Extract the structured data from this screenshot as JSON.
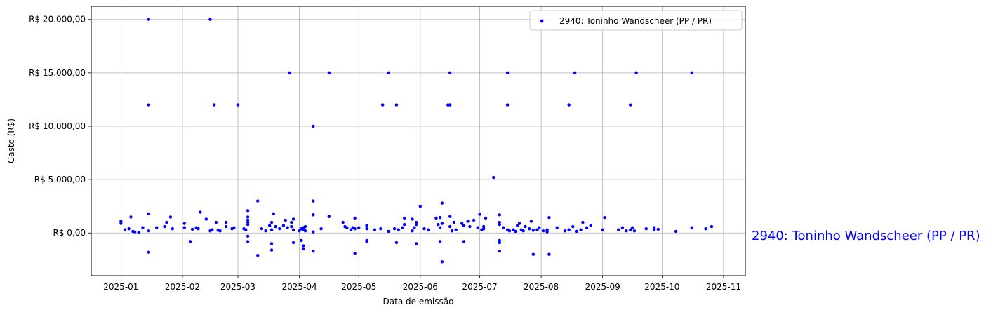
{
  "chart_data": {
    "type": "scatter",
    "title": "",
    "xlabel": "Data de emissão",
    "ylabel": "Gasto (R$)",
    "xlim": [
      "2024-12-17",
      "2025-11-12"
    ],
    "ylim": [
      -3990,
      21230
    ],
    "xticks": [
      "2025-01-01",
      "2025-02-01",
      "2025-03-01",
      "2025-04-01",
      "2025-05-01",
      "2025-06-01",
      "2025-07-01",
      "2025-08-01",
      "2025-09-01",
      "2025-10-01",
      "2025-11-01"
    ],
    "xtick_labels": [
      "2025-01",
      "2025-02",
      "2025-03",
      "2025-04",
      "2025-05",
      "2025-06",
      "2025-07",
      "2025-08",
      "2025-09",
      "2025-10",
      "2025-11"
    ],
    "yticks": [
      0,
      5000,
      10000,
      15000,
      20000
    ],
    "ytick_labels": [
      "R$ 0,00",
      "R$ 5.000,00",
      "R$ 10.000,00",
      "R$ 15.000,00",
      "R$ 20.000,00"
    ],
    "grid": true,
    "legend": {
      "position": "top-right",
      "entries": [
        "2940: Toninho Wandscheer (PP / PR)"
      ]
    },
    "annotation": "2940: Toninho Wandscheer (PP / PR)",
    "series": [
      {
        "name": "2940: Toninho Wandscheer (PP / PR)",
        "color": "#0000ff",
        "points": [
          [
            "2025-01-15",
            20000
          ],
          [
            "2025-02-15",
            20000
          ],
          [
            "2025-03-27",
            15000
          ],
          [
            "2025-04-16",
            15000
          ],
          [
            "2025-05-16",
            15000
          ],
          [
            "2025-06-16",
            15000
          ],
          [
            "2025-07-15",
            15000
          ],
          [
            "2025-08-18",
            15000
          ],
          [
            "2025-09-18",
            15000
          ],
          [
            "2025-10-16",
            15000
          ],
          [
            "2025-01-15",
            12000
          ],
          [
            "2025-02-17",
            12000
          ],
          [
            "2025-03-01",
            12000
          ],
          [
            "2025-05-13",
            12000
          ],
          [
            "2025-05-20",
            12000
          ],
          [
            "2025-06-15",
            12000
          ],
          [
            "2025-06-16",
            12000
          ],
          [
            "2025-07-15",
            12000
          ],
          [
            "2025-08-15",
            12000
          ],
          [
            "2025-09-15",
            12000
          ],
          [
            "2025-04-08",
            10000
          ],
          [
            "2025-07-08",
            5200
          ],
          [
            "2025-03-11",
            3000
          ],
          [
            "2025-04-08",
            3000
          ],
          [
            "2025-06-12",
            2800
          ],
          [
            "2025-06-01",
            2500
          ],
          [
            "2025-03-06",
            2100
          ],
          [
            "2025-02-10",
            1950
          ],
          [
            "2025-01-15",
            1800
          ],
          [
            "2025-03-19",
            1800
          ],
          [
            "2025-07-01",
            1750
          ],
          [
            "2025-04-08",
            1700
          ],
          [
            "2025-07-11",
            1700
          ],
          [
            "2025-04-16",
            1550
          ],
          [
            "2025-06-16",
            1550
          ],
          [
            "2025-01-26",
            1500
          ],
          [
            "2025-01-06",
            1500
          ],
          [
            "2025-03-06",
            1500
          ],
          [
            "2025-03-29",
            1300
          ],
          [
            "2025-05-28",
            1300
          ],
          [
            "2025-09-02",
            1450
          ],
          [
            "2025-08-05",
            1450
          ],
          [
            "2025-06-11",
            1450
          ],
          [
            "2025-04-29",
            1400
          ],
          [
            "2025-07-04",
            1400
          ],
          [
            "2025-05-24",
            1400
          ],
          [
            "2025-01-01",
            1100
          ],
          [
            "2025-01-01",
            900
          ],
          [
            "2025-01-03",
            300
          ],
          [
            "2025-01-05",
            400
          ],
          [
            "2025-01-07",
            150
          ],
          [
            "2025-01-08",
            100
          ],
          [
            "2025-01-10",
            50
          ],
          [
            "2025-01-12",
            500
          ],
          [
            "2025-01-15",
            200
          ],
          [
            "2025-01-19",
            500
          ],
          [
            "2025-01-23",
            600
          ],
          [
            "2025-01-24",
            1000
          ],
          [
            "2025-01-27",
            400
          ],
          [
            "2025-02-02",
            900
          ],
          [
            "2025-02-02",
            500
          ],
          [
            "2025-02-06",
            350
          ],
          [
            "2025-02-08",
            500
          ],
          [
            "2025-02-09",
            400
          ],
          [
            "2025-02-13",
            1300
          ],
          [
            "2025-02-15",
            200
          ],
          [
            "2025-02-16",
            300
          ],
          [
            "2025-02-18",
            1000
          ],
          [
            "2025-02-19",
            250
          ],
          [
            "2025-02-20",
            200
          ],
          [
            "2025-02-23",
            1000
          ],
          [
            "2025-02-23",
            600
          ],
          [
            "2025-02-26",
            400
          ],
          [
            "2025-02-27",
            500
          ],
          [
            "2025-03-04",
            400
          ],
          [
            "2025-03-05",
            300
          ],
          [
            "2025-03-06",
            800
          ],
          [
            "2025-03-06",
            1000
          ],
          [
            "2025-03-06",
            1200
          ],
          [
            "2025-03-13",
            400
          ],
          [
            "2025-03-15",
            200
          ],
          [
            "2025-03-17",
            700
          ],
          [
            "2025-03-18",
            1000
          ],
          [
            "2025-03-18",
            300
          ],
          [
            "2025-03-20",
            600
          ],
          [
            "2025-03-22",
            400
          ],
          [
            "2025-03-24",
            700
          ],
          [
            "2025-03-25",
            1200
          ],
          [
            "2025-03-26",
            500
          ],
          [
            "2025-03-28",
            1000
          ],
          [
            "2025-03-28",
            600
          ],
          [
            "2025-03-29",
            300
          ],
          [
            "2025-04-01",
            200
          ],
          [
            "2025-04-02",
            400
          ],
          [
            "2025-04-03",
            500
          ],
          [
            "2025-04-03",
            300
          ],
          [
            "2025-04-04",
            600
          ],
          [
            "2025-04-04",
            200
          ],
          [
            "2025-04-08",
            1700
          ],
          [
            "2025-04-08",
            100
          ],
          [
            "2025-04-12",
            400
          ],
          [
            "2025-04-16",
            1550
          ],
          [
            "2025-04-23",
            1000
          ],
          [
            "2025-04-24",
            600
          ],
          [
            "2025-04-25",
            500
          ],
          [
            "2025-04-27",
            300
          ],
          [
            "2025-04-28",
            500
          ],
          [
            "2025-04-29",
            400
          ],
          [
            "2025-05-01",
            500
          ],
          [
            "2025-05-05",
            700
          ],
          [
            "2025-05-05",
            400
          ],
          [
            "2025-05-09",
            300
          ],
          [
            "2025-05-12",
            400
          ],
          [
            "2025-05-16",
            150
          ],
          [
            "2025-05-19",
            400
          ],
          [
            "2025-05-21",
            300
          ],
          [
            "2025-05-23",
            500
          ],
          [
            "2025-05-24",
            800
          ],
          [
            "2025-05-28",
            200
          ],
          [
            "2025-05-29",
            500
          ],
          [
            "2025-05-30",
            1000
          ],
          [
            "2025-05-30",
            800
          ],
          [
            "2025-06-03",
            400
          ],
          [
            "2025-06-05",
            300
          ],
          [
            "2025-06-09",
            1400
          ],
          [
            "2025-06-10",
            800
          ],
          [
            "2025-06-11",
            500
          ],
          [
            "2025-06-12",
            900
          ],
          [
            "2025-06-16",
            600
          ],
          [
            "2025-06-17",
            200
          ],
          [
            "2025-06-18",
            1000
          ],
          [
            "2025-06-19",
            300
          ],
          [
            "2025-06-22",
            900
          ],
          [
            "2025-06-23",
            700
          ],
          [
            "2025-06-25",
            1100
          ],
          [
            "2025-06-26",
            600
          ],
          [
            "2025-06-28",
            1200
          ],
          [
            "2025-06-30",
            500
          ],
          [
            "2025-07-02",
            300
          ],
          [
            "2025-07-03",
            400
          ],
          [
            "2025-07-03",
            600
          ],
          [
            "2025-07-11",
            1000
          ],
          [
            "2025-07-11",
            800
          ],
          [
            "2025-07-13",
            500
          ],
          [
            "2025-07-15",
            300
          ],
          [
            "2025-07-16",
            200
          ],
          [
            "2025-07-18",
            300
          ],
          [
            "2025-07-19",
            150
          ],
          [
            "2025-07-20",
            700
          ],
          [
            "2025-07-21",
            900
          ],
          [
            "2025-07-22",
            300
          ],
          [
            "2025-07-23",
            200
          ],
          [
            "2025-07-24",
            600
          ],
          [
            "2025-07-26",
            400
          ],
          [
            "2025-07-27",
            1100
          ],
          [
            "2025-07-28",
            250
          ],
          [
            "2025-07-30",
            300
          ],
          [
            "2025-07-31",
            500
          ],
          [
            "2025-08-02",
            200
          ],
          [
            "2025-08-04",
            300
          ],
          [
            "2025-08-04",
            100
          ],
          [
            "2025-08-09",
            500
          ],
          [
            "2025-08-13",
            200
          ],
          [
            "2025-08-15",
            300
          ],
          [
            "2025-08-17",
            600
          ],
          [
            "2025-08-19",
            150
          ],
          [
            "2025-08-21",
            300
          ],
          [
            "2025-08-22",
            1000
          ],
          [
            "2025-08-24",
            500
          ],
          [
            "2025-08-26",
            700
          ],
          [
            "2025-09-01",
            300
          ],
          [
            "2025-09-09",
            300
          ],
          [
            "2025-09-11",
            500
          ],
          [
            "2025-09-13",
            200
          ],
          [
            "2025-09-15",
            300
          ],
          [
            "2025-09-16",
            500
          ],
          [
            "2025-09-17",
            200
          ],
          [
            "2025-09-23",
            400
          ],
          [
            "2025-09-27",
            300
          ],
          [
            "2025-09-27",
            500
          ],
          [
            "2025-09-29",
            350
          ],
          [
            "2025-10-08",
            150
          ],
          [
            "2025-10-16",
            500
          ],
          [
            "2025-10-23",
            400
          ],
          [
            "2025-10-26",
            600
          ],
          [
            "2025-01-15",
            -1800
          ],
          [
            "2025-02-05",
            -800
          ],
          [
            "2025-03-06",
            -300
          ],
          [
            "2025-03-06",
            -800
          ],
          [
            "2025-03-11",
            -2100
          ],
          [
            "2025-03-18",
            -1000
          ],
          [
            "2025-03-18",
            -1600
          ],
          [
            "2025-03-29",
            -900
          ],
          [
            "2025-04-02",
            -700
          ],
          [
            "2025-04-03",
            -1200
          ],
          [
            "2025-04-03",
            -1500
          ],
          [
            "2025-04-08",
            -1700
          ],
          [
            "2025-04-29",
            -1900
          ],
          [
            "2025-05-05",
            -700
          ],
          [
            "2025-05-05",
            -800
          ],
          [
            "2025-05-20",
            -900
          ],
          [
            "2025-05-30",
            -1000
          ],
          [
            "2025-06-11",
            -800
          ],
          [
            "2025-06-12",
            -2700
          ],
          [
            "2025-06-23",
            -800
          ],
          [
            "2025-07-11",
            -700
          ],
          [
            "2025-07-11",
            -900
          ],
          [
            "2025-07-11",
            -1700
          ],
          [
            "2025-07-28",
            -2000
          ],
          [
            "2025-08-05",
            -2000
          ]
        ]
      }
    ]
  }
}
